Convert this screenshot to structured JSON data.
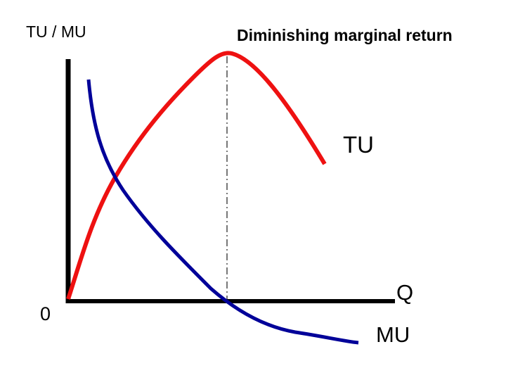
{
  "title": "Diminishing marginal return",
  "axes": {
    "y_label": "TU / MU",
    "x_label": "Q",
    "origin": "0"
  },
  "curves": [
    {
      "label": "TU"
    },
    {
      "label": "MU"
    }
  ]
}
